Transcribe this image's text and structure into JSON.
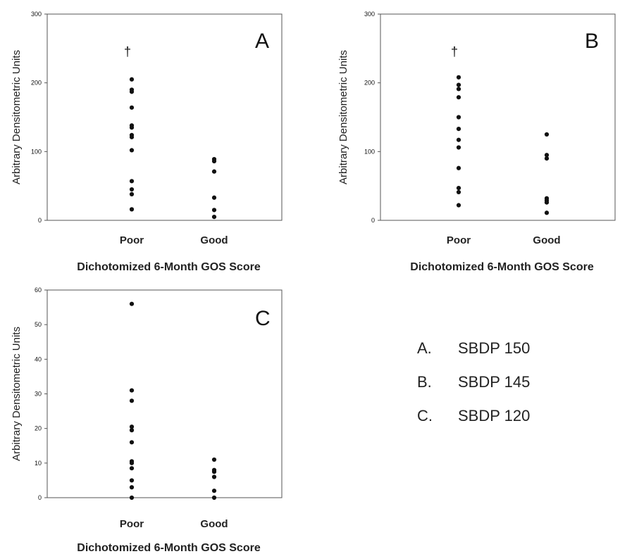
{
  "chart_data": [
    {
      "type": "scatter",
      "panel_letter": "A",
      "ylabel": "Arbitrary Densitometric Units",
      "xlabel": "Dichotomized 6-Month GOS Score",
      "categories": [
        "Poor",
        "Good"
      ],
      "yticks": [
        "0",
        "100",
        "200",
        "300"
      ],
      "ylim": [
        0,
        300
      ],
      "annotation": "†",
      "annotation_category": "Poor",
      "annotation_y": 245,
      "series": [
        {
          "category": "Poor",
          "values": [
            205,
            190,
            187,
            164,
            138,
            135,
            124,
            121,
            102,
            57,
            45,
            38,
            16
          ]
        },
        {
          "category": "Good",
          "values": [
            89,
            86,
            71,
            33,
            15,
            5
          ]
        }
      ]
    },
    {
      "type": "scatter",
      "panel_letter": "B",
      "ylabel": "Arbitrary Densitometric Units",
      "xlabel": "Dichotomized 6-Month GOS Score",
      "categories": [
        "Poor",
        "Good"
      ],
      "yticks": [
        "0",
        "100",
        "200",
        "300"
      ],
      "ylim": [
        0,
        300
      ],
      "annotation": "†",
      "annotation_category": "Poor",
      "annotation_y": 245,
      "series": [
        {
          "category": "Poor",
          "values": [
            208,
            197,
            191,
            179,
            150,
            133,
            117,
            106,
            76,
            47,
            41,
            22
          ]
        },
        {
          "category": "Good",
          "values": [
            125,
            95,
            90,
            32,
            29,
            26,
            11
          ]
        }
      ]
    },
    {
      "type": "scatter",
      "panel_letter": "C",
      "ylabel": "Arbitrary Densitometric Units",
      "xlabel": "Dichotomized 6-Month GOS Score",
      "categories": [
        "Poor",
        "Good"
      ],
      "yticks": [
        "0",
        "10",
        "20",
        "30",
        "40",
        "50",
        "60"
      ],
      "ylim": [
        0,
        60
      ],
      "series": [
        {
          "category": "Poor",
          "values": [
            56,
            31,
            28,
            20.5,
            19.5,
            16,
            10.5,
            10,
            8.5,
            5,
            3,
            0
          ]
        },
        {
          "category": "Good",
          "values": [
            11,
            8,
            7.5,
            6,
            2,
            0
          ]
        }
      ]
    }
  ],
  "legend": [
    {
      "letter": "A.",
      "name": "SBDP 150"
    },
    {
      "letter": "B.",
      "name": "SBDP 145"
    },
    {
      "letter": "C.",
      "name": "SBDP 120"
    }
  ],
  "colors": {
    "dots": "#111111",
    "axis": "#555555",
    "text": "#222222"
  }
}
